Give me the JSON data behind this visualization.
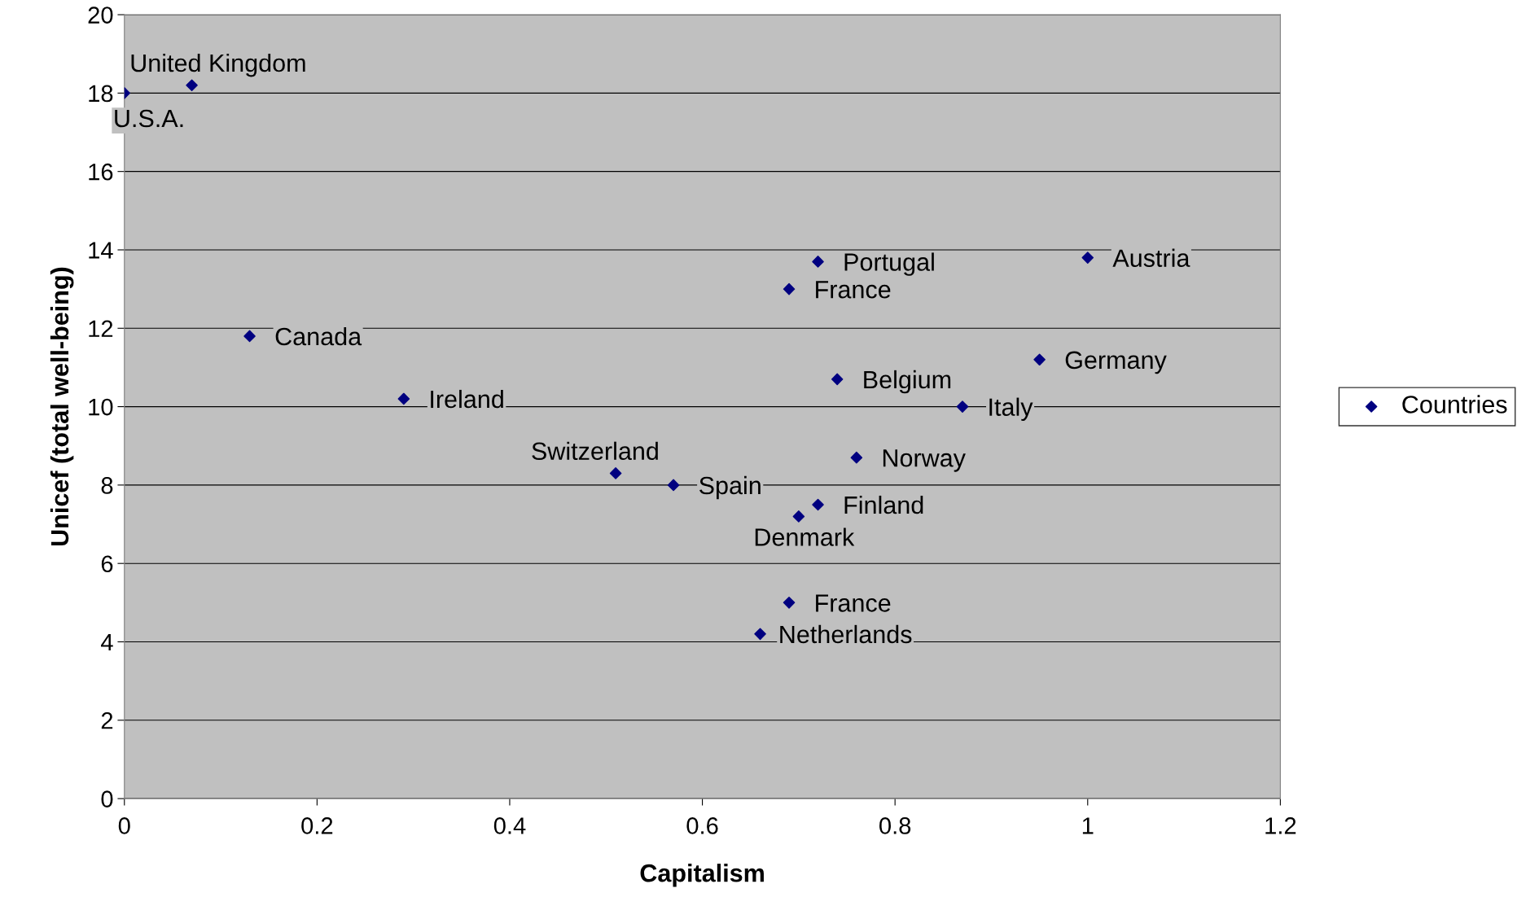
{
  "chart_data": {
    "type": "scatter",
    "xlabel": "Capitalism",
    "ylabel": "Unicef (total well-being)",
    "series": [
      {
        "name": "Countries",
        "color": "#000080",
        "x": [
          0,
          0.07,
          0.13,
          0.29,
          0.51,
          0.57,
          0.72,
          0.69,
          0.74,
          1.0,
          0.95,
          0.87,
          0.76,
          0.72,
          0.7,
          0.69,
          0.66
        ],
        "values": [
          18.0,
          18.2,
          11.8,
          10.2,
          8.3,
          8.0,
          13.7,
          13.0,
          10.7,
          13.8,
          11.2,
          10.0,
          8.7,
          7.5,
          7.2,
          5.0,
          4.2
        ]
      }
    ],
    "annotations": [
      {
        "text": "U.S.A.",
        "x": 0,
        "y": 18.0
      },
      {
        "text": "United Kingdom",
        "x": 0.07,
        "y": 18.2
      },
      {
        "text": "Canada",
        "x": 0.13,
        "y": 11.8
      },
      {
        "text": "Ireland",
        "x": 0.29,
        "y": 10.2
      },
      {
        "text": "Switzerland",
        "x": 0.51,
        "y": 8.3
      },
      {
        "text": "Spain",
        "x": 0.57,
        "y": 8.0
      },
      {
        "text": "Portugal",
        "x": 0.72,
        "y": 13.7
      },
      {
        "text": "France",
        "x": 0.69,
        "y": 13.0
      },
      {
        "text": "Belgium",
        "x": 0.74,
        "y": 10.7
      },
      {
        "text": "Austria",
        "x": 1.0,
        "y": 13.8
      },
      {
        "text": "Germany",
        "x": 0.95,
        "y": 11.2
      },
      {
        "text": "Italy",
        "x": 0.87,
        "y": 10.0
      },
      {
        "text": "Norway",
        "x": 0.76,
        "y": 8.7
      },
      {
        "text": "Finland",
        "x": 0.72,
        "y": 7.5
      },
      {
        "text": "Denmark",
        "x": 0.7,
        "y": 7.2
      },
      {
        "text": "France",
        "x": 0.69,
        "y": 5.0
      },
      {
        "text": "Netherlands",
        "x": 0.66,
        "y": 4.2
      }
    ],
    "xlim": [
      0,
      1.2
    ],
    "xticks": [
      0,
      0.2,
      0.4,
      0.6,
      0.8,
      1,
      1.2
    ],
    "ylim": [
      0,
      20
    ],
    "yticks": [
      0,
      2,
      4,
      6,
      8,
      10,
      12,
      14,
      16,
      18,
      20
    ],
    "grid": "y",
    "legend": "right",
    "marker": "diamond"
  }
}
